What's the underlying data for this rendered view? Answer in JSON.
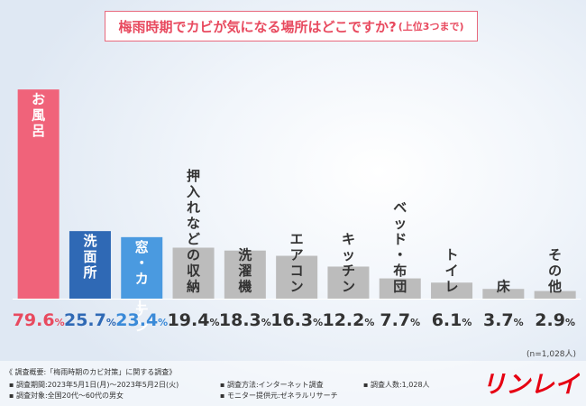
{
  "title": {
    "main": "梅雨時期でカビが気になる場所はどこですか?",
    "sub": "(上位3つまで)"
  },
  "chart_data": {
    "type": "bar",
    "title": "梅雨時期でカビが気になる場所はどこですか?(上位3つまで)",
    "categories": [
      "お風呂",
      "洗面所",
      "窓・カーテン",
      "押入れなどの収納",
      "洗濯機",
      "エアコン",
      "キッチン",
      "ベッド・布団",
      "トイレ",
      "床",
      "その他"
    ],
    "values": [
      79.6,
      25.7,
      23.4,
      19.4,
      18.3,
      16.3,
      12.2,
      7.7,
      6.1,
      3.7,
      2.9
    ],
    "value_labels": [
      "79.6%",
      "25.7%",
      "23.4%",
      "19.4%",
      "18.3%",
      "16.3%",
      "12.2%",
      "7.7%",
      "6.1%",
      "3.7%",
      "2.9%"
    ],
    "unit": "%",
    "ylim": [
      0,
      80
    ],
    "grid": false,
    "legend": "none",
    "colors": {
      "rank1": "#f0637a",
      "rank2": "#2f69b5",
      "rank3": "#4a9ae0",
      "other": "#bcbcbc",
      "label_on_gray": "#333333",
      "label_on_color": "#ffffff"
    },
    "value_label_colors": [
      "#e84a5f",
      "#2f69b5",
      "#3a8ad8",
      "#333333",
      "#333333",
      "#333333",
      "#333333",
      "#333333",
      "#333333",
      "#333333",
      "#333333"
    ]
  },
  "sample_note": "(n=1,028人)",
  "footer": {
    "heading": "《 調査概要:「梅雨時期のカビ対策」に関する調査》",
    "period": "▪ 調査期間:2023年5月1日(月)〜2023年5月2日(火)",
    "target": "▪ 調査対象:全国20代〜60代の男女",
    "method": "▪ 調査方法:インターネット調査",
    "provider": "▪ モニター提供元:ゼネラルリサーチ",
    "count": "▪ 調査人数:1,028人"
  },
  "logo": {
    "text": "リンレイ",
    "color": "#e60012"
  }
}
